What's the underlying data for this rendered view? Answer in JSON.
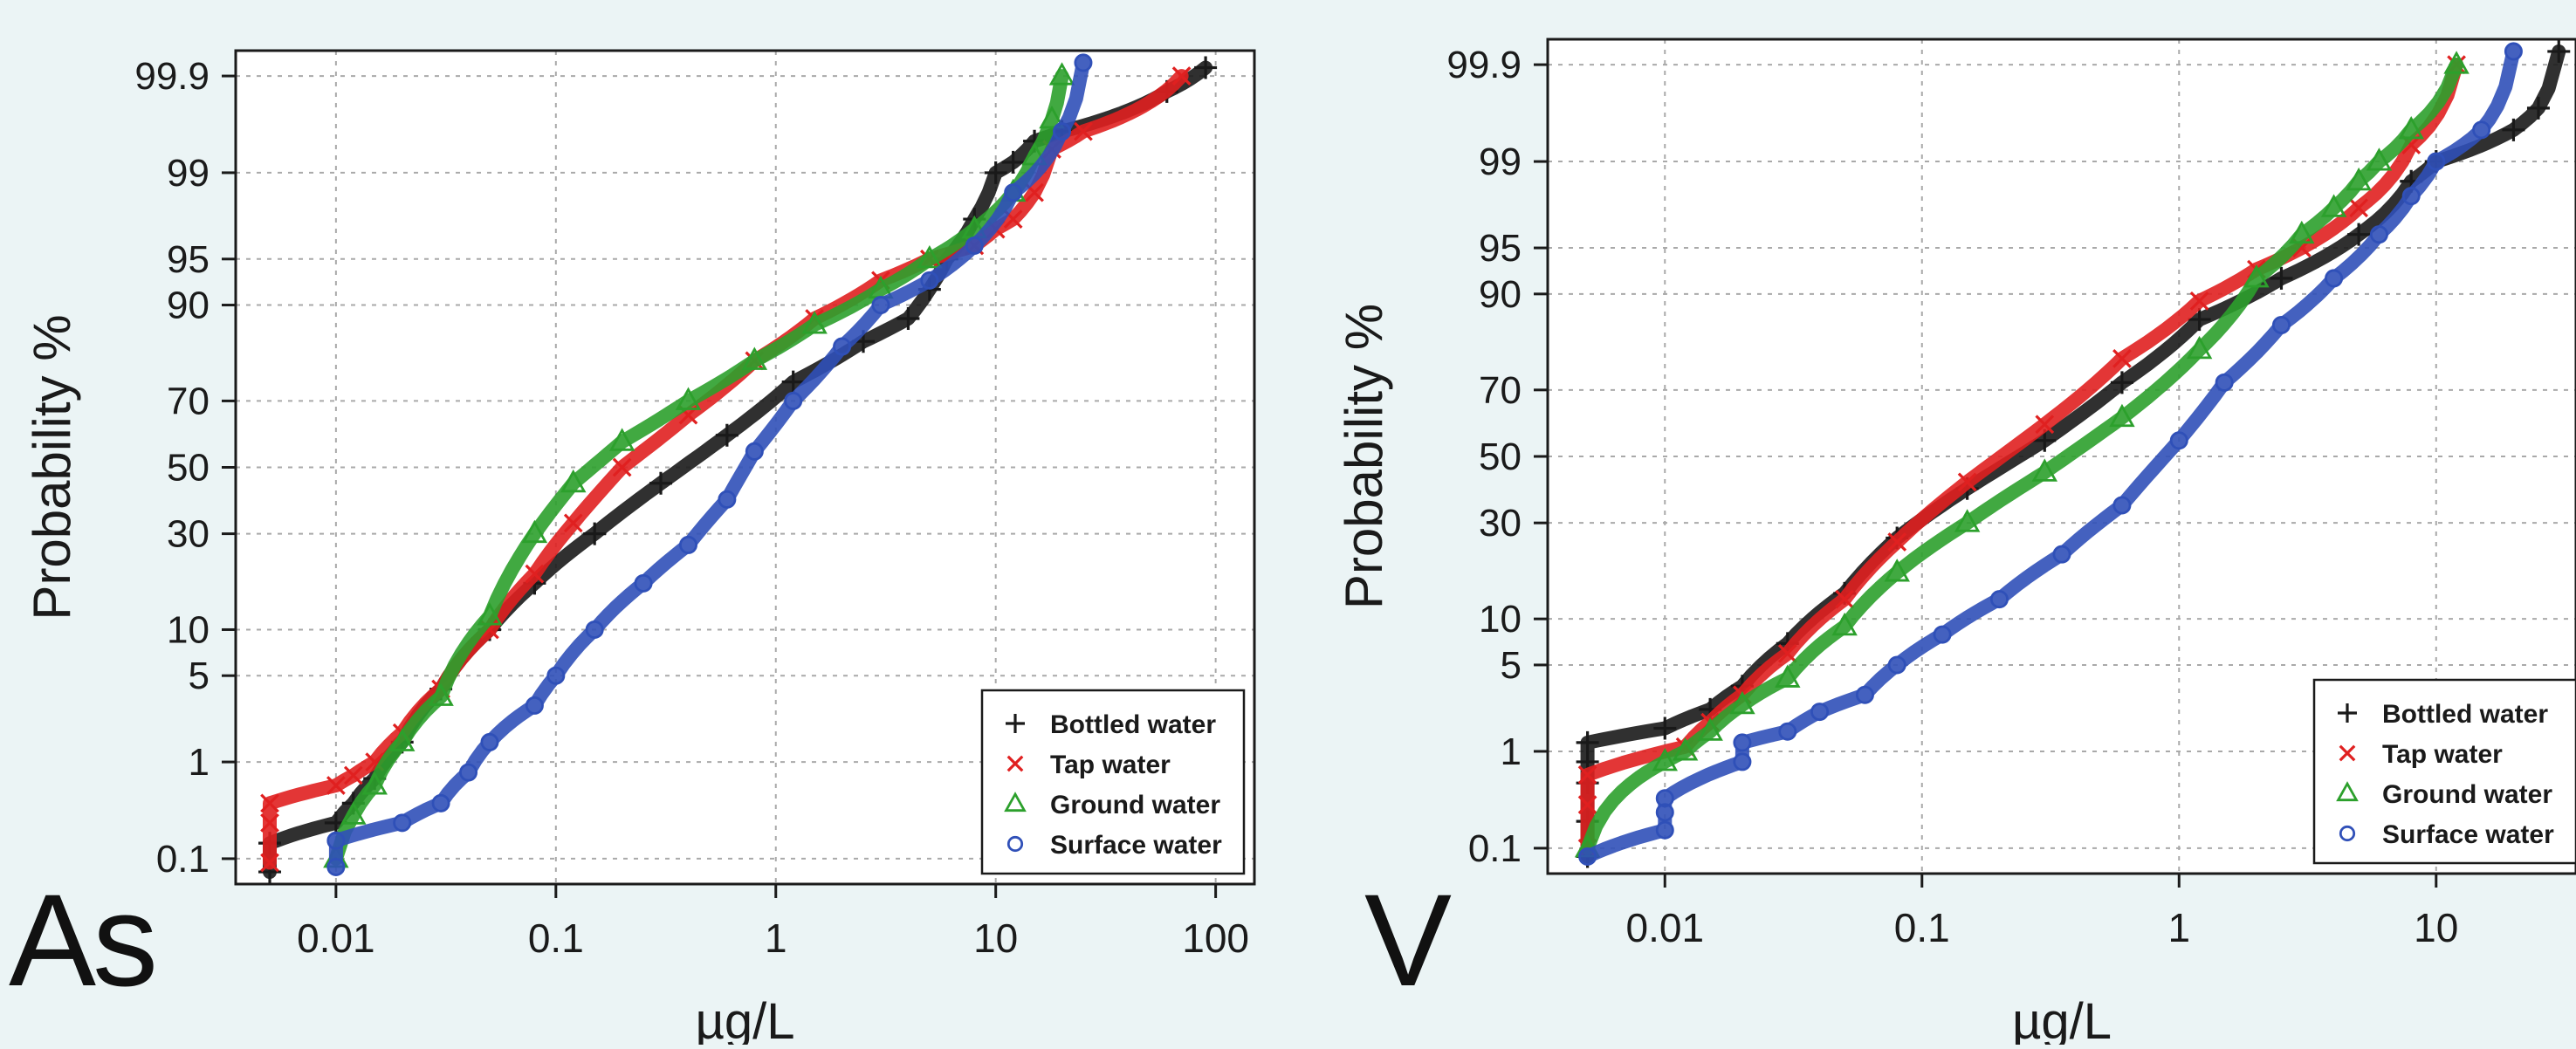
{
  "chart_data": [
    {
      "panel_label": "As",
      "type": "scatter",
      "x_scale": "log",
      "y_scale": "normal-probability",
      "xlabel": "µg/L",
      "ylabel": "Probability %",
      "xlim": [
        0.0035,
        150
      ],
      "ylim": [
        0.05,
        99.95
      ],
      "x_ticks": [
        0.01,
        0.1,
        1,
        10,
        100
      ],
      "x_tick_labels": [
        "0.01",
        "0.1",
        "1",
        "10",
        "100"
      ],
      "y_ticks": [
        0.1,
        1,
        5,
        10,
        30,
        50,
        70,
        90,
        95,
        99,
        99.9
      ],
      "y_tick_labels": [
        "0.1",
        "1",
        "5",
        "10",
        "30",
        "50",
        "70",
        "90",
        "95",
        "99",
        "99.9"
      ],
      "grid": true,
      "legend_position": "bottom-right",
      "series": [
        {
          "name": "Bottled water",
          "marker": "plus",
          "color": "#1a1a1a",
          "x": [
            0.005,
            0.005,
            0.01,
            0.012,
            0.015,
            0.02,
            0.03,
            0.05,
            0.08,
            0.15,
            0.3,
            0.6,
            1.2,
            2.5,
            4,
            5,
            6,
            8,
            10,
            12,
            15,
            20,
            60,
            90
          ],
          "y": [
            0.07,
            0.15,
            0.25,
            0.4,
            0.7,
            1.5,
            4,
            10,
            18,
            30,
            45,
            60,
            75,
            84,
            88,
            92,
            95,
            97.5,
            99,
            99.2,
            99.5,
            99.6,
            99.85,
            99.92
          ]
        },
        {
          "name": "Tap water",
          "marker": "x",
          "color": "#e02020",
          "x": [
            0.005,
            0.005,
            0.005,
            0.01,
            0.012,
            0.015,
            0.02,
            0.03,
            0.05,
            0.08,
            0.12,
            0.2,
            0.4,
            0.8,
            1.5,
            3,
            5,
            8,
            10,
            12,
            15,
            18,
            25,
            70
          ],
          "y": [
            0.09,
            0.25,
            0.4,
            0.6,
            0.75,
            1,
            1.8,
            4,
            10,
            20,
            33,
            50,
            66,
            80,
            88,
            93,
            95,
            96,
            97,
            97.5,
            98.5,
            99.4,
            99.6,
            99.9
          ],
          "mark_pixels": true
        },
        {
          "name": "Ground water",
          "marker": "triangle",
          "color": "#2ca02c",
          "x": [
            0.01,
            0.012,
            0.015,
            0.02,
            0.03,
            0.05,
            0.08,
            0.12,
            0.2,
            0.4,
            0.8,
            1.5,
            3,
            5,
            8,
            12,
            15,
            18,
            20
          ],
          "y": [
            0.1,
            0.3,
            0.6,
            1.5,
            3.5,
            12,
            30,
            45,
            58,
            70,
            80,
            87,
            92,
            95,
            97,
            98.5,
            99.3,
            99.7,
            99.9
          ]
        },
        {
          "name": "Surface water",
          "marker": "circle",
          "color": "#3050b8",
          "x": [
            0.01,
            0.01,
            0.02,
            0.03,
            0.04,
            0.05,
            0.08,
            0.1,
            0.15,
            0.25,
            0.4,
            0.6,
            0.8,
            1.2,
            2,
            3,
            5,
            8,
            12,
            20,
            25
          ],
          "y": [
            0.08,
            0.16,
            0.25,
            0.4,
            0.8,
            1.5,
            3,
            5,
            10,
            18,
            27,
            40,
            55,
            70,
            83,
            90,
            93,
            96,
            98.5,
            99.6,
            99.93
          ]
        }
      ]
    },
    {
      "panel_label": "V",
      "type": "scatter",
      "x_scale": "log",
      "y_scale": "normal-probability",
      "xlabel": "µg/L",
      "ylabel": "Probability %",
      "xlim": [
        0.0035,
        35
      ],
      "ylim": [
        0.05,
        99.95
      ],
      "x_ticks": [
        0.01,
        0.1,
        1,
        10
      ],
      "x_tick_labels": [
        "0.01",
        "0.1",
        "1",
        "10"
      ],
      "y_ticks": [
        0.1,
        1,
        5,
        10,
        30,
        50,
        70,
        90,
        95,
        99,
        99.9
      ],
      "y_tick_labels": [
        "0.1",
        "1",
        "5",
        "10",
        "30",
        "50",
        "70",
        "90",
        "95",
        "99",
        "99.9"
      ],
      "grid": true,
      "legend_position": "bottom-right",
      "series": [
        {
          "name": "Bottled water",
          "marker": "plus",
          "color": "#1a1a1a",
          "x": [
            0.005,
            0.005,
            0.005,
            0.005,
            0.005,
            0.01,
            0.015,
            0.02,
            0.03,
            0.05,
            0.08,
            0.15,
            0.3,
            0.6,
            1.2,
            2.5,
            5,
            8,
            10,
            20,
            25,
            30
          ],
          "y": [
            0.08,
            0.2,
            0.5,
            0.8,
            1.2,
            1.6,
            2.3,
            3.5,
            7,
            14,
            26,
            40,
            55,
            72,
            86,
            92,
            96,
            98.5,
            99,
            99.5,
            99.7,
            99.93
          ]
        },
        {
          "name": "Tap water",
          "marker": "x",
          "color": "#e02020",
          "x": [
            0.005,
            0.005,
            0.005,
            0.012,
            0.015,
            0.02,
            0.03,
            0.05,
            0.08,
            0.15,
            0.3,
            0.6,
            1.2,
            2,
            3,
            5,
            8,
            12
          ],
          "y": [
            0.1,
            0.3,
            0.6,
            1.1,
            1.8,
            3,
            6,
            13,
            25,
            42,
            60,
            78,
            89,
            93,
            95,
            97.5,
            99.3,
            99.9
          ]
        },
        {
          "name": "Ground water",
          "marker": "triangle",
          "color": "#2ca02c",
          "x": [
            0.005,
            0.01,
            0.012,
            0.015,
            0.02,
            0.03,
            0.05,
            0.08,
            0.15,
            0.3,
            0.6,
            1.2,
            2,
            3,
            4,
            5,
            6,
            8,
            12
          ],
          "y": [
            0.1,
            0.8,
            1,
            1.5,
            2.5,
            4,
            9,
            18,
            30,
            45,
            62,
            80,
            92,
            96,
            97.5,
            98.5,
            99,
            99.5,
            99.9
          ]
        },
        {
          "name": "Surface water",
          "marker": "circle",
          "color": "#3050b8",
          "x": [
            0.005,
            0.01,
            0.01,
            0.01,
            0.02,
            0.02,
            0.03,
            0.04,
            0.06,
            0.08,
            0.12,
            0.2,
            0.35,
            0.6,
            1,
            1.5,
            2.5,
            4,
            6,
            8,
            10,
            15,
            20
          ],
          "y": [
            0.08,
            0.16,
            0.25,
            0.35,
            0.8,
            1.2,
            1.5,
            2.2,
            3,
            5,
            8,
            13,
            22,
            35,
            55,
            72,
            85,
            92,
            96,
            98,
            99,
            99.5,
            99.93
          ]
        }
      ]
    }
  ]
}
